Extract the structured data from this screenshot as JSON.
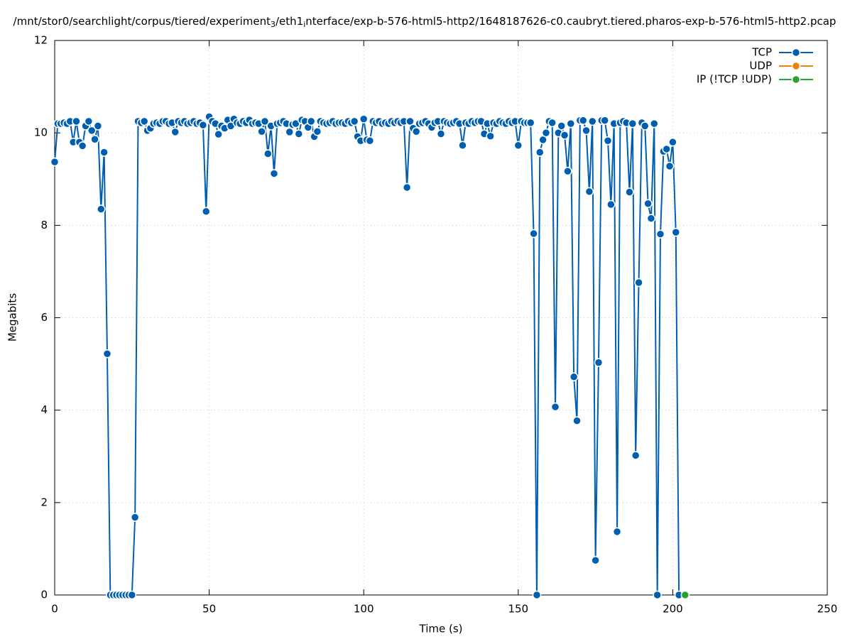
{
  "chart_data": {
    "type": "line",
    "title_parts": [
      "/mnt/stor0/searchlight/corpus/tiered/experiment",
      "3",
      "/eth1",
      "i",
      "nterface/exp-b-576-html5-http2/1648187626-c0.caubryt.tiered.pharos-exp-b-576-html5-http2.pcap"
    ],
    "x_label": "Time (s)",
    "y_label": "Megabits",
    "xlim": [
      0,
      250
    ],
    "xticks": [
      0,
      50,
      100,
      150,
      200,
      250
    ],
    "ylim": [
      0,
      12
    ],
    "yticks": [
      0,
      2,
      4,
      6,
      8,
      10,
      12
    ],
    "grid": true,
    "legend": "top-right",
    "series": [
      {
        "name": "TCP",
        "color": "#005eb0",
        "x": [
          0,
          1,
          2,
          3,
          4,
          5,
          6,
          7,
          8,
          9,
          10,
          11,
          12,
          13,
          14,
          15,
          16,
          17,
          18,
          19,
          20,
          21,
          22,
          23,
          24,
          25,
          26,
          27,
          28,
          29,
          30,
          31,
          32,
          33,
          34,
          35,
          36,
          37,
          38,
          39,
          40,
          41,
          42,
          43,
          44,
          45,
          46,
          47,
          48,
          49,
          50,
          51,
          52,
          53,
          54,
          55,
          56,
          57,
          58,
          59,
          60,
          61,
          62,
          63,
          64,
          65,
          66,
          67,
          68,
          69,
          70,
          71,
          72,
          73,
          74,
          75,
          76,
          77,
          78,
          79,
          80,
          81,
          82,
          83,
          84,
          85,
          86,
          87,
          88,
          89,
          90,
          91,
          92,
          93,
          94,
          95,
          96,
          97,
          98,
          99,
          100,
          101,
          102,
          103,
          104,
          105,
          106,
          107,
          108,
          109,
          110,
          111,
          112,
          113,
          114,
          115,
          116,
          117,
          118,
          119,
          120,
          121,
          122,
          123,
          124,
          125,
          126,
          127,
          128,
          129,
          130,
          131,
          132,
          133,
          134,
          135,
          136,
          137,
          138,
          139,
          140,
          141,
          142,
          143,
          144,
          145,
          146,
          147,
          148,
          149,
          150,
          151,
          152,
          153,
          154,
          155,
          156,
          157,
          158,
          159,
          160,
          161,
          162,
          163,
          164,
          165,
          166,
          167,
          168,
          169,
          170,
          171,
          172,
          173,
          174,
          175,
          176,
          177,
          178,
          179,
          180,
          181,
          182,
          183,
          184,
          185,
          186,
          187,
          188,
          189,
          190,
          191,
          192,
          193,
          194,
          195,
          196,
          197,
          198,
          199,
          200,
          201,
          202
        ],
        "values": [
          9.37,
          10.2,
          10.2,
          10.22,
          10.2,
          10.25,
          9.8,
          10.25,
          9.8,
          9.72,
          10.15,
          10.25,
          10.05,
          9.86,
          10.15,
          8.35,
          9.58,
          5.22,
          0,
          0,
          0,
          0,
          0,
          0,
          0,
          0,
          1.68,
          10.25,
          10.22,
          10.25,
          10.05,
          10.1,
          10.2,
          10.22,
          10.2,
          10.25,
          10.25,
          10.2,
          10.22,
          10.02,
          10.25,
          10.22,
          10.25,
          10.2,
          10.22,
          10.25,
          10.2,
          10.22,
          10.17,
          8.3,
          10.35,
          10.25,
          10.2,
          9.97,
          10.15,
          10.1,
          10.28,
          10.15,
          10.3,
          10.22,
          10.2,
          10.25,
          10.22,
          10.28,
          10.2,
          10.22,
          10.2,
          10.03,
          10.25,
          9.55,
          10.15,
          9.12,
          10.2,
          10.22,
          10.25,
          10.2,
          10.02,
          10.18,
          10.2,
          9.98,
          10.28,
          10.25,
          10.12,
          10.25,
          9.92,
          10.03,
          10.25,
          10.22,
          10.2,
          10.22,
          10.25,
          10.2,
          10.22,
          10.22,
          10.2,
          10.25,
          10.22,
          10.25,
          9.92,
          9.83,
          10.3,
          9.85,
          9.83,
          10.25,
          10.22,
          10.25,
          10.2,
          10.22,
          10.2,
          10.25,
          10.22,
          10.25,
          10.22,
          10.25,
          8.82,
          10.25,
          10.1,
          10.03,
          10.2,
          10.22,
          10.25,
          10.2,
          10.12,
          10.22,
          10.25,
          9.98,
          10.25,
          10.22,
          10.2,
          10.22,
          10.25,
          10.2,
          9.73,
          10.22,
          10.2,
          10.25,
          10.22,
          10.25,
          10.25,
          9.98,
          10.2,
          9.93,
          10.22,
          10.2,
          10.25,
          10.22,
          10.2,
          10.25,
          10.22,
          10.25,
          9.73,
          10.25,
          10.22,
          10.22,
          10.22,
          7.82,
          0,
          9.58,
          9.85,
          10.0,
          10.25,
          10.22,
          4.07,
          10.0,
          10.15,
          9.95,
          9.17,
          10.2,
          4.72,
          3.77,
          10.27,
          10.27,
          10.05,
          8.73,
          10.25,
          0.75,
          5.03,
          10.27,
          10.27,
          9.83,
          8.45,
          10.2,
          1.37,
          10.22,
          10.25,
          10.22,
          8.72,
          10.2,
          3.02,
          6.76,
          10.22,
          10.15,
          8.47,
          8.15,
          10.2,
          0,
          7.81,
          9.6,
          9.65,
          9.28,
          9.8,
          7.85,
          0
        ]
      },
      {
        "name": "UDP",
        "color": "#f07f0e",
        "x": [],
        "values": []
      },
      {
        "name": "IP (!TCP  !UDP)",
        "color": "#2ca02c",
        "x": [
          204
        ],
        "values": [
          0
        ]
      }
    ]
  }
}
